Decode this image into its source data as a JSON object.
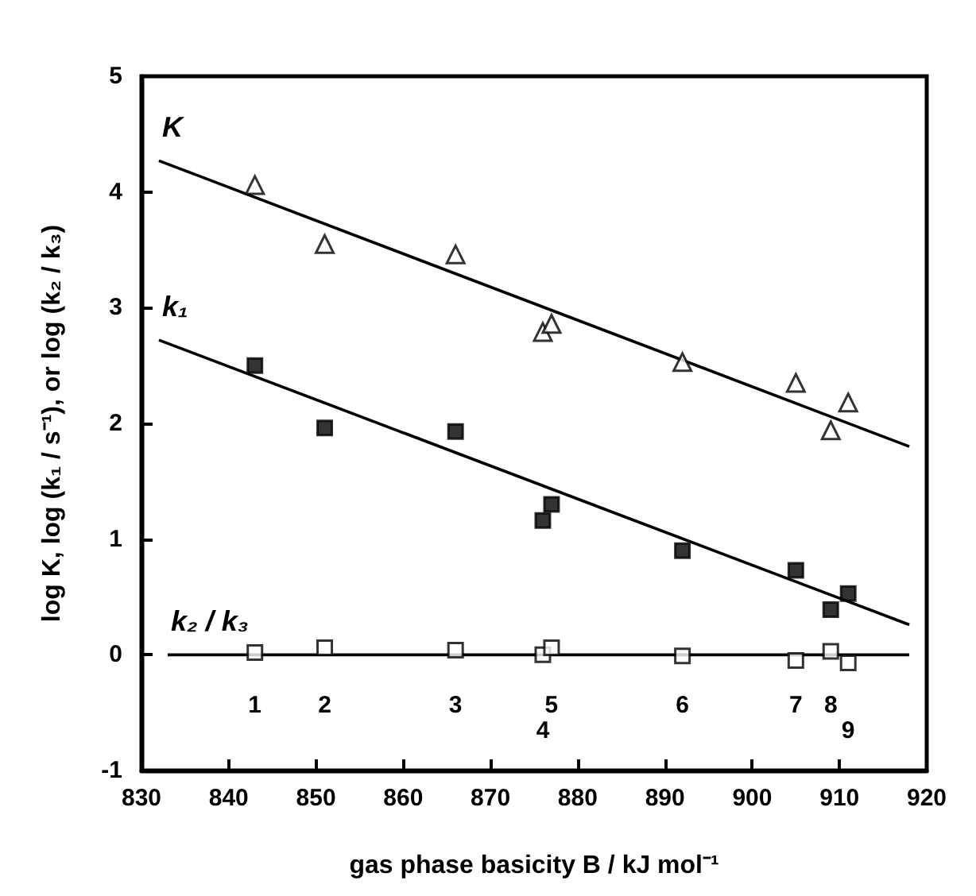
{
  "chart_data": {
    "type": "scatter",
    "xlabel": "gas phase basicity B / kJ mol⁻¹",
    "ylabel": "log K, log (k₁ / s⁻¹), or log (k₂ / k₃)",
    "xlim": [
      830,
      920
    ],
    "xticks": [
      830,
      840,
      850,
      860,
      870,
      880,
      890,
      900,
      910,
      920
    ],
    "ylim": [
      -1,
      5
    ],
    "yticks": [
      -1,
      0,
      1,
      2,
      3,
      4,
      5
    ],
    "grid": false,
    "legend": "left",
    "series": [
      {
        "name": "K",
        "color": "#000000",
        "marker": "triangle",
        "x": [
          843,
          851,
          866,
          876,
          877,
          892,
          905,
          909,
          911
        ],
        "values": [
          4.06,
          3.55,
          3.46,
          2.79,
          2.86,
          2.53,
          2.35,
          1.94,
          2.18
        ]
      },
      {
        "name": "k₁",
        "color": "#000000",
        "marker": "square",
        "x": [
          843,
          851,
          866,
          876,
          877,
          892,
          905,
          909,
          911
        ],
        "values": [
          2.5,
          1.96,
          1.93,
          1.16,
          1.3,
          0.9,
          0.73,
          0.39,
          0.53
        ]
      },
      {
        "name": "k₂ / k₃",
        "color": "#000000",
        "marker": "square",
        "x": [
          843,
          851,
          866,
          876,
          877,
          892,
          905,
          909,
          911
        ],
        "values": [
          0.02,
          0.06,
          0.04,
          0,
          0.06,
          -0.01,
          -0.05,
          0.03,
          -0.07
        ]
      },
      {
        "type": "line",
        "color": "#000000",
        "marker": "none",
        "x": [
          832,
          918
        ],
        "values": [
          4.27,
          1.8
        ]
      },
      {
        "type": "line",
        "color": "#000000",
        "marker": "none",
        "x": [
          832,
          918
        ],
        "values": [
          2.72,
          0.26
        ]
      },
      {
        "type": "line",
        "color": "#000000",
        "marker": "none",
        "x": [
          833,
          918
        ],
        "values": [
          0,
          0
        ]
      }
    ],
    "annotations": [
      "1",
      "2",
      "3",
      "4",
      "5",
      "6",
      "7",
      "8",
      "9"
    ]
  }
}
